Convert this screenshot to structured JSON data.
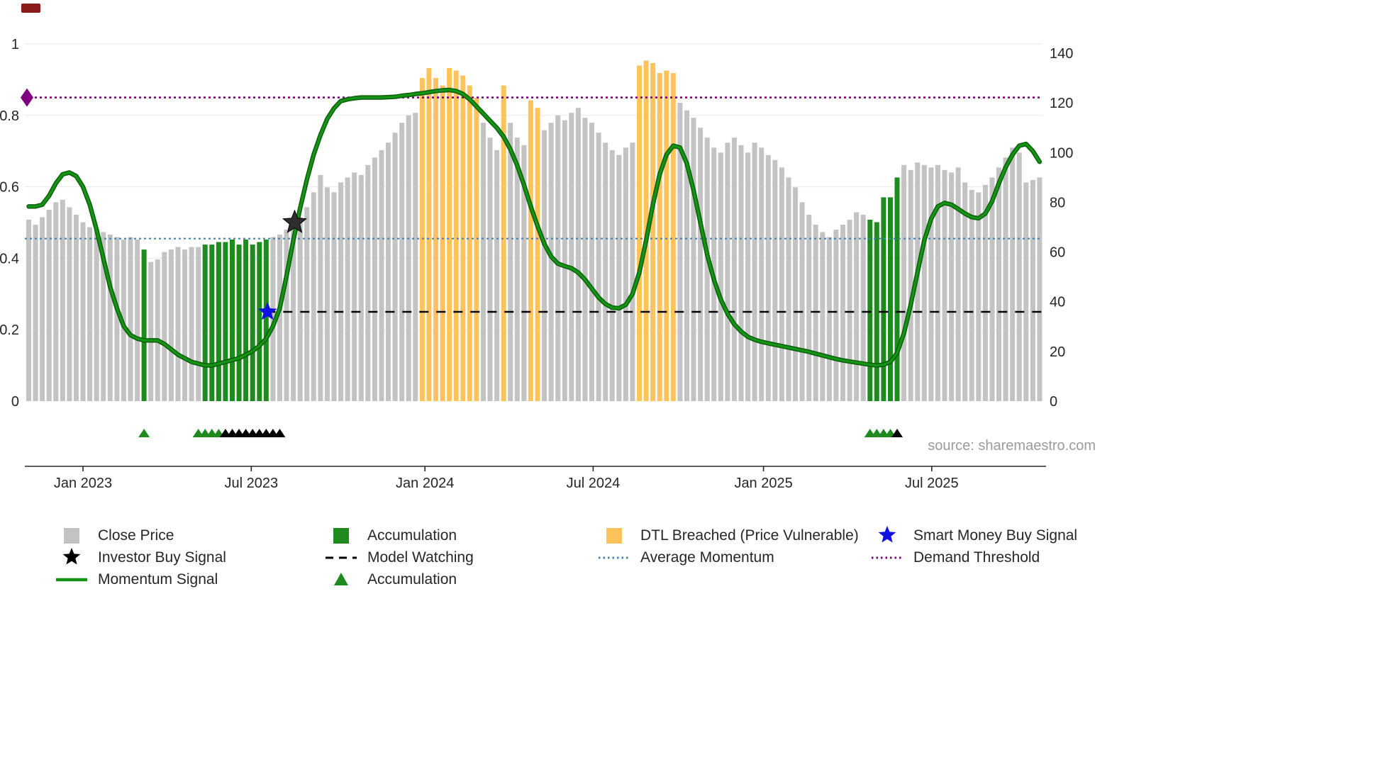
{
  "chart_data": {
    "type": "bar+line",
    "title": "",
    "source_text": "source: sharemaestro.com",
    "x_axis": {
      "tick_labels": [
        "Jan 2023",
        "Jul 2023",
        "Jan 2024",
        "Jul 2024",
        "Jan 2025",
        "Jul 2025"
      ],
      "tick_weeks": [
        8,
        32.8,
        58.4,
        83.2,
        108.3,
        133.1
      ]
    },
    "left_y_axis": {
      "ticks": [
        0,
        0.2,
        0.4,
        0.6,
        0.8,
        1
      ],
      "range": [
        0,
        1
      ],
      "series": "momentum"
    },
    "right_y_axis": {
      "ticks": [
        0,
        20,
        40,
        60,
        80,
        100,
        120,
        140
      ],
      "range": [
        0,
        140
      ],
      "series": "close price"
    },
    "bars": {
      "prices": [
        73,
        71,
        74,
        77,
        80,
        81,
        78,
        75,
        72,
        70,
        69,
        68,
        67,
        66,
        65,
        66,
        65,
        61,
        56,
        57,
        60,
        61,
        62,
        61,
        62,
        62,
        63,
        63,
        64,
        64,
        65,
        63,
        65,
        63,
        64,
        65,
        66,
        67,
        69,
        71,
        74,
        78,
        84,
        91,
        86,
        84,
        88,
        90,
        92,
        91,
        95,
        98,
        101,
        104,
        108,
        112,
        115,
        116,
        130,
        134,
        130,
        127,
        134,
        133,
        131,
        127,
        122,
        112,
        106,
        101,
        127,
        112,
        106,
        103,
        121,
        118,
        109,
        112,
        115,
        113,
        116,
        118,
        114,
        112,
        108,
        104,
        101,
        99,
        102,
        104,
        135,
        137,
        136,
        132,
        133,
        132,
        120,
        117,
        114,
        110,
        106,
        102,
        100,
        104,
        106,
        103,
        100,
        104,
        102,
        99,
        97,
        94,
        90,
        86,
        80,
        75,
        71,
        68,
        66,
        69,
        71,
        73,
        76,
        75,
        73,
        72,
        82,
        82,
        90,
        95,
        93,
        96,
        95,
        94,
        95,
        93,
        92,
        94,
        88,
        85,
        84,
        87,
        90,
        94,
        98,
        102,
        100,
        88,
        89,
        90
      ],
      "accumulation_idx": [
        17,
        26,
        27,
        28,
        29,
        30,
        31,
        32,
        33,
        34,
        35,
        124,
        125,
        126,
        127,
        128
      ],
      "dtl_breached_idx": [
        58,
        59,
        60,
        61,
        62,
        63,
        64,
        65,
        66,
        70,
        74,
        75,
        90,
        91,
        92,
        93,
        94,
        95
      ]
    },
    "momentum_signal": [
      0.545,
      0.545,
      0.55,
      0.575,
      0.61,
      0.635,
      0.64,
      0.63,
      0.6,
      0.55,
      0.48,
      0.4,
      0.32,
      0.26,
      0.21,
      0.185,
      0.175,
      0.17,
      0.17,
      0.17,
      0.16,
      0.145,
      0.13,
      0.12,
      0.11,
      0.105,
      0.1,
      0.1,
      0.105,
      0.11,
      0.115,
      0.12,
      0.13,
      0.14,
      0.155,
      0.175,
      0.21,
      0.26,
      0.35,
      0.45,
      0.54,
      0.62,
      0.69,
      0.745,
      0.79,
      0.82,
      0.84,
      0.845,
      0.848,
      0.85,
      0.85,
      0.85,
      0.85,
      0.851,
      0.852,
      0.855,
      0.857,
      0.86,
      0.862,
      0.865,
      0.868,
      0.87,
      0.871,
      0.868,
      0.86,
      0.845,
      0.825,
      0.805,
      0.785,
      0.765,
      0.74,
      0.705,
      0.66,
      0.605,
      0.545,
      0.49,
      0.44,
      0.405,
      0.385,
      0.378,
      0.372,
      0.36,
      0.34,
      0.315,
      0.29,
      0.272,
      0.262,
      0.26,
      0.27,
      0.3,
      0.36,
      0.45,
      0.55,
      0.635,
      0.69,
      0.715,
      0.71,
      0.665,
      0.59,
      0.5,
      0.41,
      0.34,
      0.285,
      0.245,
      0.215,
      0.195,
      0.18,
      0.172,
      0.166,
      0.162,
      0.158,
      0.154,
      0.15,
      0.146,
      0.142,
      0.138,
      0.133,
      0.128,
      0.123,
      0.118,
      0.114,
      0.111,
      0.108,
      0.105,
      0.102,
      0.1,
      0.102,
      0.11,
      0.135,
      0.19,
      0.27,
      0.36,
      0.45,
      0.51,
      0.545,
      0.555,
      0.55,
      0.538,
      0.525,
      0.515,
      0.512,
      0.525,
      0.56,
      0.61,
      0.655,
      0.69,
      0.715,
      0.72,
      0.7,
      0.67
    ],
    "lines": {
      "average_momentum": 0.455,
      "demand_threshold": 0.85,
      "model_watching": {
        "level": 0.25,
        "start_week": 35
      }
    },
    "markers": {
      "investor_buy": [
        {
          "week": 39.2,
          "value": 0.5
        }
      ],
      "smart_money_buy": [
        {
          "week": 35.2,
          "value": 0.25
        }
      ],
      "demand_threshold_start": {
        "week": 0,
        "value": 0.85
      },
      "accumulation_triangle_weeks": [
        17,
        25,
        26,
        27,
        28,
        124,
        125,
        126,
        127
      ],
      "watch_triangle_weeks": [
        29,
        30,
        31,
        32,
        33,
        34,
        35,
        36,
        37,
        128
      ]
    },
    "colors": {
      "close_price": "#c3c3c3",
      "accumulation": "#1f8b1f",
      "dtl_breached": "#ffc35c",
      "momentum_signal": "#149314",
      "momentum_edge": "#0b5e0b",
      "average_momentum": "#4682b4",
      "demand_threshold": "#800080",
      "model_watching": "#000000",
      "smart_money": "#1212e0",
      "investor": "#2e2e2e",
      "triangle_black": "#000000",
      "source": "#9b9b9b",
      "axis": "#262626",
      "grid": "#e9e9e9",
      "artifact": "#8b1b1b"
    }
  },
  "legend": {
    "items": [
      {
        "name": "close-price",
        "marker": "square",
        "color": "#c3c3c3",
        "label": "Close Price"
      },
      {
        "name": "accumulation-bars",
        "marker": "square",
        "color": "#1f8b1f",
        "label": "Accumulation"
      },
      {
        "name": "dtl-breached",
        "marker": "square",
        "color": "#ffc35c",
        "label": "DTL Breached (Price Vulnerable)"
      },
      {
        "name": "smart-money-buy-signal",
        "marker": "star",
        "color": "#1212e0",
        "label": "Smart Money Buy Signal"
      },
      {
        "name": "investor-buy-signal",
        "marker": "star",
        "color": "#000000",
        "label": "Investor Buy Signal"
      },
      {
        "name": "model-watching",
        "marker": "dashed-line",
        "color": "#000000",
        "label": "Model Watching"
      },
      {
        "name": "average-momentum",
        "marker": "dotted-line",
        "color": "#4682b4",
        "label": "Average Momentum"
      },
      {
        "name": "demand-threshold",
        "marker": "dotted-line",
        "color": "#800080",
        "label": "Demand Threshold"
      },
      {
        "name": "momentum-signal",
        "marker": "solid-line",
        "color": "#149314",
        "label": "Momentum Signal"
      },
      {
        "name": "accumulation-triangles",
        "marker": "triangle",
        "color": "#1f8b1f",
        "label": "Accumulation"
      }
    ]
  }
}
